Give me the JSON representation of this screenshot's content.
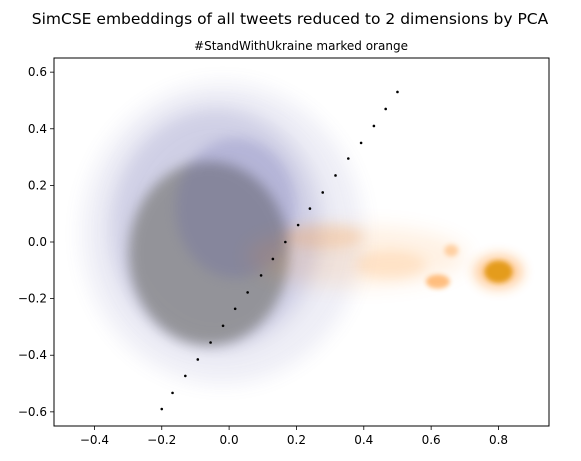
{
  "chart_data": {
    "type": "scatter",
    "title": "SimCSE embeddings of all tweets reduced to 2 dimensions by PCA",
    "subtitle": "#StandWithUkraine marked orange",
    "xlabel": "",
    "ylabel": "",
    "xlim": [
      -0.52,
      0.95
    ],
    "ylim": [
      -0.65,
      0.65
    ],
    "x_ticks": [
      -0.4,
      -0.2,
      0.0,
      0.2,
      0.4,
      0.6,
      0.8
    ],
    "x_tick_labels": [
      "−0.4",
      "−0.2",
      "0.0",
      "0.2",
      "0.4",
      "0.6",
      "0.8"
    ],
    "y_ticks": [
      -0.6,
      -0.4,
      -0.2,
      0.0,
      0.2,
      0.4,
      0.6
    ],
    "y_tick_labels": [
      "−0.6",
      "−0.4",
      "−0.2",
      "0.0",
      "0.2",
      "0.4",
      "0.6"
    ],
    "grid": false,
    "legend": "none",
    "colors": {
      "all_tweets": "#5a5aa8",
      "all_tweets_dense": "#808080",
      "stand_with_ukraine": "#ff8c1a",
      "swu_dense": "#e39a12",
      "markers": "#000000"
    },
    "series": [
      {
        "x": [
          0.5,
          0.465,
          0.43,
          0.392,
          0.354,
          0.316,
          0.278,
          0.24,
          0.205,
          0.167,
          0.13,
          0.095,
          0.055,
          0.018,
          -0.018,
          -0.055,
          -0.093,
          -0.13,
          -0.168,
          -0.2
        ],
        "y": [
          0.53,
          0.47,
          0.41,
          0.35,
          0.295,
          0.235,
          0.175,
          0.118,
          0.06,
          0.0,
          -0.06,
          -0.118,
          -0.178,
          -0.236,
          -0.296,
          -0.355,
          -0.415,
          -0.473,
          -0.533,
          -0.59
        ]
      }
    ]
  }
}
